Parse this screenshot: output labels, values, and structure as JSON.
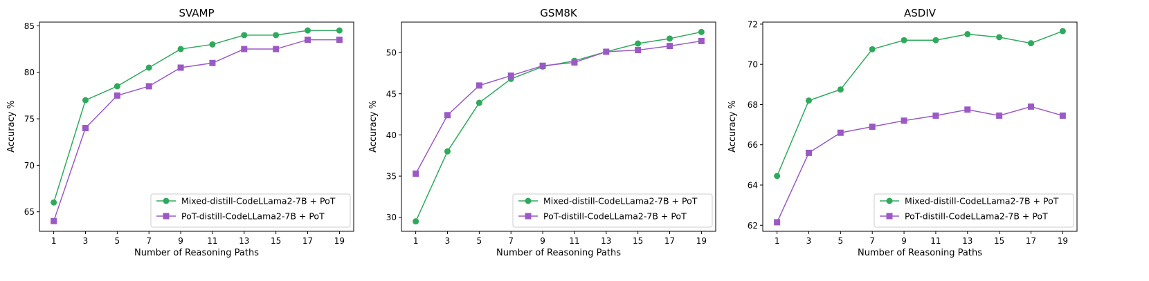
{
  "colors": {
    "mixed": "#2eaa5c",
    "pot": "#9b59c6"
  },
  "chart_data": [
    {
      "type": "line",
      "title": "SVAMP",
      "xlabel": "Number of Reasoning Paths",
      "ylabel": "Accuracy %",
      "x": [
        1,
        3,
        5,
        7,
        9,
        11,
        13,
        15,
        17,
        19
      ],
      "xticks": [
        "1",
        "3",
        "5",
        "7",
        "9",
        "11",
        "13",
        "15",
        "17",
        "19"
      ],
      "xlim": [
        0.1,
        19.9
      ],
      "ylim": [
        62.9,
        85.4
      ],
      "yticks": [
        "65",
        "70",
        "75",
        "80",
        "85"
      ],
      "legend": "lower-right",
      "series": [
        {
          "name": "Mixed-distill-CodeLLama2-7B + PoT",
          "marker": "circle",
          "values": [
            66.0,
            77.0,
            78.5,
            80.5,
            82.5,
            83.0,
            84.0,
            84.0,
            84.5,
            84.5
          ]
        },
        {
          "name": "PoT-distill-CodeLLama2-7B + PoT",
          "marker": "square",
          "values": [
            64.0,
            74.0,
            77.5,
            78.5,
            80.5,
            81.0,
            82.5,
            82.5,
            83.5,
            83.5
          ]
        }
      ]
    },
    {
      "type": "line",
      "title": "GSM8K",
      "xlabel": "Number of Reasoning Paths",
      "ylabel": "Accuracy %",
      "x": [
        1,
        3,
        5,
        7,
        9,
        11,
        13,
        15,
        17,
        19
      ],
      "xticks": [
        "1",
        "3",
        "5",
        "7",
        "9",
        "11",
        "13",
        "15",
        "17",
        "19"
      ],
      "xlim": [
        0.1,
        19.9
      ],
      "ylim": [
        28.3,
        53.7
      ],
      "yticks": [
        "30",
        "35",
        "40",
        "45",
        "50"
      ],
      "legend": "lower-right",
      "series": [
        {
          "name": "Mixed-distill-CodeLLama2-7B + PoT",
          "marker": "circle",
          "values": [
            29.5,
            38.0,
            43.9,
            46.8,
            48.3,
            49.0,
            50.1,
            51.1,
            51.7,
            52.5
          ]
        },
        {
          "name": "PoT-distill-CodeLLama2-7B + PoT",
          "marker": "square",
          "values": [
            35.3,
            42.4,
            46.0,
            47.2,
            48.4,
            48.8,
            50.1,
            50.3,
            50.8,
            51.4
          ]
        }
      ]
    },
    {
      "type": "line",
      "title": "ASDIV",
      "xlabel": "Number of Reasoning Paths",
      "ylabel": "Accuracy %",
      "x": [
        1,
        3,
        5,
        7,
        9,
        11,
        13,
        15,
        17,
        19
      ],
      "xticks": [
        "1",
        "3",
        "5",
        "7",
        "9",
        "11",
        "13",
        "15",
        "17",
        "19"
      ],
      "xlim": [
        0.1,
        19.9
      ],
      "ylim": [
        61.7,
        72.1
      ],
      "yticks": [
        "62",
        "64",
        "66",
        "68",
        "70",
        "72"
      ],
      "legend": "lower-right",
      "series": [
        {
          "name": "Mixed-distill-CodeLLama2-7B + PoT",
          "marker": "circle",
          "values": [
            64.45,
            68.2,
            68.75,
            70.75,
            71.2,
            71.2,
            71.5,
            71.35,
            71.05,
            71.65
          ]
        },
        {
          "name": "PoT-distill-CodeLLama2-7B + PoT",
          "marker": "square",
          "values": [
            62.15,
            65.6,
            66.6,
            66.9,
            67.2,
            67.45,
            67.75,
            67.45,
            67.9,
            67.45
          ]
        }
      ]
    }
  ]
}
